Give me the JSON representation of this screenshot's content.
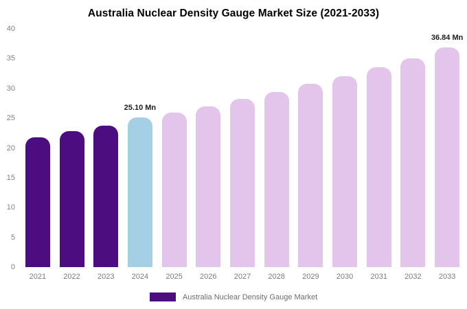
{
  "chart_data": {
    "type": "bar",
    "title": "Australia Nuclear Density Gauge Market Size (2021-2033)",
    "xlabel": "",
    "ylabel": "",
    "categories": [
      "2021",
      "2022",
      "2023",
      "2024",
      "2025",
      "2026",
      "2027",
      "2028",
      "2029",
      "2030",
      "2031",
      "2032",
      "2033"
    ],
    "values": [
      21.8,
      22.8,
      23.8,
      25.1,
      25.9,
      27.0,
      28.2,
      29.4,
      30.8,
      32.1,
      33.5,
      35.0,
      36.84
    ],
    "bar_colors": [
      "#4B0D80",
      "#4B0D80",
      "#4B0D80",
      "#A4CFE4",
      "#E3C4EA",
      "#E3C4EA",
      "#E3C4EA",
      "#E3C4EA",
      "#E3C4EA",
      "#E3C4EA",
      "#E3C4EA",
      "#E3C4EA",
      "#E3C4EA"
    ],
    "annotations": [
      {
        "category": "2024",
        "text": "25.10 Mn"
      },
      {
        "category": "2033",
        "text": "36.84 Mn"
      }
    ],
    "ylim": [
      0,
      40
    ],
    "yticks": [
      0,
      5,
      10,
      15,
      20,
      25,
      30,
      35,
      40
    ],
    "grid": false,
    "legend": {
      "position": "bottom",
      "entries": [
        {
          "label": "Australia Nuclear Density Gauge Market",
          "color": "#4B0D80"
        }
      ]
    },
    "palette_semantics": {
      "historical": "#4B0D80",
      "current_year_highlight": "#A4CFE4",
      "forecast": "#E3C4EA"
    }
  }
}
